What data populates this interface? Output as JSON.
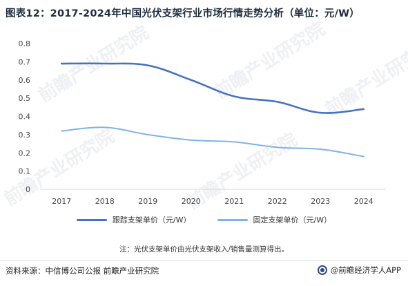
{
  "title": "图表12：2017-2024年中国光伏支架行业市场行情走势分析（单位：元/W）",
  "note": "注：光伏支架单价由光伏支架收入/销售量测算得出。",
  "source": "资料来源：中信博公司公报  前瞻产业研究院",
  "brand": "@前瞻经济学人APP",
  "watermark": "前瞻产业研究院",
  "chart_data": {
    "type": "line",
    "categories": [
      "2017",
      "2018",
      "2019",
      "2020",
      "2021",
      "2022",
      "2023",
      "2024"
    ],
    "series": [
      {
        "name": "跟踪支架单价（元/W）",
        "color": "#4472c4",
        "values": [
          0.69,
          0.69,
          0.68,
          0.6,
          0.51,
          0.48,
          0.42,
          0.44
        ]
      },
      {
        "name": "固定支架单价（元/W）",
        "color": "#7fb2e5",
        "values": [
          0.32,
          0.34,
          0.3,
          0.27,
          0.26,
          0.23,
          0.22,
          0.18
        ]
      }
    ],
    "ylim": [
      0,
      0.8
    ],
    "yticks": [
      "0",
      "0.1",
      "0.2",
      "0.3",
      "0.4",
      "0.5",
      "0.6",
      "0.7",
      "0.8"
    ],
    "grid": false,
    "legend": "bottom"
  }
}
